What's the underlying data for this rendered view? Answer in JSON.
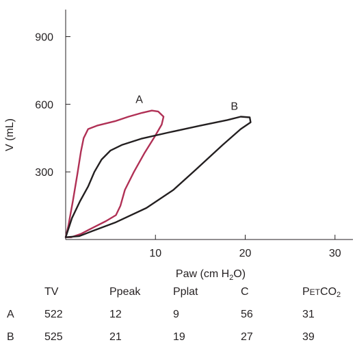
{
  "chart_data": {
    "type": "line",
    "xlabel": "Paw (cm H2O)",
    "xlabel_parts": {
      "pre": "Paw (cm H",
      "sub": "2",
      "post": "O)"
    },
    "ylabel": "V (mL)",
    "xlim": [
      0,
      32
    ],
    "ylim": [
      0,
      1020
    ],
    "xticks": [
      10,
      20,
      30
    ],
    "yticks": [
      300,
      600,
      900
    ],
    "grid": false,
    "series": [
      {
        "name": "A",
        "color": "#b03055",
        "points": [
          [
            0.0,
            10
          ],
          [
            0.3,
            60
          ],
          [
            0.8,
            170
          ],
          [
            1.3,
            290
          ],
          [
            1.7,
            390
          ],
          [
            2.0,
            450
          ],
          [
            2.5,
            490
          ],
          [
            3.5,
            505
          ],
          [
            5.5,
            525
          ],
          [
            7.0,
            545
          ],
          [
            8.5,
            562
          ],
          [
            9.6,
            572
          ],
          [
            10.3,
            568
          ],
          [
            10.9,
            545
          ],
          [
            10.7,
            510
          ],
          [
            9.9,
            455
          ],
          [
            8.8,
            385
          ],
          [
            7.6,
            300
          ],
          [
            6.6,
            220
          ],
          [
            6.1,
            150
          ],
          [
            5.6,
            108
          ],
          [
            4.5,
            82
          ],
          [
            3.0,
            52
          ],
          [
            1.7,
            25
          ],
          [
            0.6,
            10
          ],
          [
            0.0,
            10
          ]
        ]
      },
      {
        "name": "B",
        "color": "#231f20",
        "points": [
          [
            0.0,
            10
          ],
          [
            0.7,
            95
          ],
          [
            1.6,
            170
          ],
          [
            2.5,
            235
          ],
          [
            3.2,
            300
          ],
          [
            4.0,
            355
          ],
          [
            5.0,
            395
          ],
          [
            6.3,
            420
          ],
          [
            8.5,
            448
          ],
          [
            11.5,
            475
          ],
          [
            15.0,
            505
          ],
          [
            18.0,
            530
          ],
          [
            19.5,
            545
          ],
          [
            20.5,
            542
          ],
          [
            20.6,
            520
          ],
          [
            19.5,
            490
          ],
          [
            17.5,
            420
          ],
          [
            14.5,
            310
          ],
          [
            12.0,
            220
          ],
          [
            9.0,
            140
          ],
          [
            5.5,
            75
          ],
          [
            3.0,
            38
          ],
          [
            1.5,
            15
          ],
          [
            0.0,
            10
          ]
        ]
      }
    ],
    "curve_labels": [
      {
        "text": "A",
        "x": 8.2,
        "y": 605
      },
      {
        "text": "B",
        "x": 18.8,
        "y": 575
      }
    ]
  },
  "table": {
    "headers": {
      "tv": "TV",
      "ppeak": "Ppeak",
      "pplat": "Pplat",
      "c": "C",
      "petco2": {
        "p": "P",
        "et": "ET",
        "co": "CO",
        "sub": "2"
      }
    },
    "rows": [
      {
        "label": "A",
        "tv": "522",
        "ppeak": "12",
        "pplat": "9",
        "c": "56",
        "petco2": "31"
      },
      {
        "label": "B",
        "tv": "525",
        "ppeak": "21",
        "pplat": "19",
        "c": "27",
        "petco2": "39"
      }
    ]
  }
}
